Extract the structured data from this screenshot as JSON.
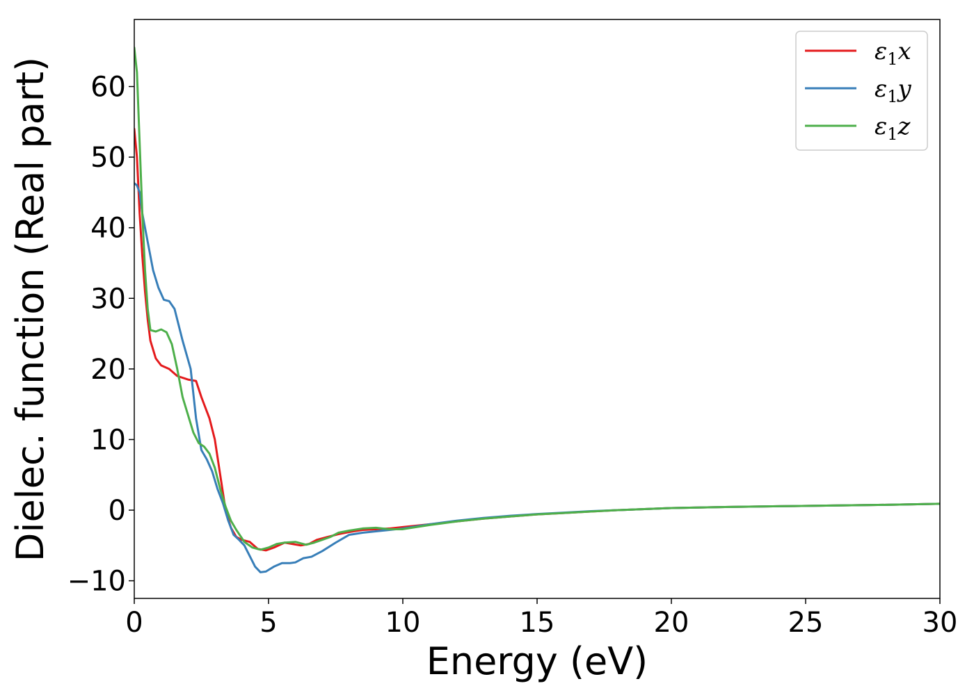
{
  "chart_data": {
    "type": "line",
    "title": "",
    "xlabel": "Energy (eV)",
    "ylabel": "Dielec. function (Real part)",
    "xlim": [
      0,
      30
    ],
    "ylim": [
      -12.5,
      69.5
    ],
    "xticks": [
      0,
      5,
      10,
      15,
      20,
      25,
      30
    ],
    "xtick_labels": [
      "0",
      "5",
      "10",
      "15",
      "20",
      "25",
      "30"
    ],
    "yticks": [
      -10,
      0,
      10,
      20,
      30,
      40,
      50,
      60
    ],
    "ytick_labels": [
      "−10",
      "0",
      "10",
      "20",
      "30",
      "40",
      "50",
      "60"
    ],
    "grid": false,
    "legend_position": "top-right",
    "series": [
      {
        "name": "ε",
        "sub": "1",
        "suffix": "x",
        "color": "#e41a1c",
        "points": [
          [
            0,
            54
          ],
          [
            0.1,
            50
          ],
          [
            0.2,
            42
          ],
          [
            0.3,
            36
          ],
          [
            0.4,
            31
          ],
          [
            0.5,
            27
          ],
          [
            0.6,
            24
          ],
          [
            0.8,
            21.5
          ],
          [
            1.0,
            20.5
          ],
          [
            1.3,
            20
          ],
          [
            1.6,
            19
          ],
          [
            2.0,
            18.5
          ],
          [
            2.3,
            18.3
          ],
          [
            2.5,
            16
          ],
          [
            2.8,
            13
          ],
          [
            3.0,
            10
          ],
          [
            3.2,
            5
          ],
          [
            3.4,
            0
          ],
          [
            3.6,
            -2.5
          ],
          [
            3.8,
            -3.8
          ],
          [
            4.0,
            -4.2
          ],
          [
            4.3,
            -4.5
          ],
          [
            4.6,
            -5.5
          ],
          [
            4.9,
            -5.7
          ],
          [
            5.2,
            -5.3
          ],
          [
            5.6,
            -4.6
          ],
          [
            5.9,
            -4.8
          ],
          [
            6.2,
            -5.0
          ],
          [
            6.5,
            -4.8
          ],
          [
            6.8,
            -4.2
          ],
          [
            7.2,
            -3.8
          ],
          [
            7.6,
            -3.4
          ],
          [
            8.0,
            -3.1
          ],
          [
            8.5,
            -2.8
          ],
          [
            9.0,
            -2.7
          ],
          [
            9.5,
            -2.6
          ],
          [
            10,
            -2.4
          ],
          [
            11,
            -2.0
          ],
          [
            12,
            -1.6
          ],
          [
            13,
            -1.2
          ],
          [
            14,
            -0.9
          ],
          [
            15,
            -0.6
          ],
          [
            16,
            -0.4
          ],
          [
            17,
            -0.2
          ],
          [
            18,
            0
          ],
          [
            19,
            0.15
          ],
          [
            20,
            0.3
          ],
          [
            22,
            0.45
          ],
          [
            24,
            0.55
          ],
          [
            26,
            0.65
          ],
          [
            28,
            0.75
          ],
          [
            30,
            0.9
          ]
        ]
      },
      {
        "name": "ε",
        "sub": "1",
        "suffix": "y",
        "color": "#377eb8",
        "points": [
          [
            0,
            46.3
          ],
          [
            0.1,
            46
          ],
          [
            0.2,
            45
          ],
          [
            0.3,
            42
          ],
          [
            0.5,
            38
          ],
          [
            0.7,
            34
          ],
          [
            0.9,
            31.5
          ],
          [
            1.1,
            29.8
          ],
          [
            1.3,
            29.6
          ],
          [
            1.5,
            28.5
          ],
          [
            1.8,
            24
          ],
          [
            2.1,
            20
          ],
          [
            2.3,
            13
          ],
          [
            2.5,
            8.5
          ],
          [
            2.7,
            7.2
          ],
          [
            2.9,
            5.5
          ],
          [
            3.1,
            3
          ],
          [
            3.3,
            1
          ],
          [
            3.5,
            -1.5
          ],
          [
            3.7,
            -3.5
          ],
          [
            3.9,
            -4.2
          ],
          [
            4.1,
            -5
          ],
          [
            4.3,
            -6.5
          ],
          [
            4.5,
            -8
          ],
          [
            4.7,
            -8.8
          ],
          [
            4.9,
            -8.7
          ],
          [
            5.2,
            -8.0
          ],
          [
            5.5,
            -7.5
          ],
          [
            5.8,
            -7.5
          ],
          [
            6.0,
            -7.4
          ],
          [
            6.3,
            -6.8
          ],
          [
            6.6,
            -6.6
          ],
          [
            7.0,
            -5.8
          ],
          [
            7.5,
            -4.6
          ],
          [
            8.0,
            -3.5
          ],
          [
            8.5,
            -3.2
          ],
          [
            9.0,
            -3.0
          ],
          [
            9.5,
            -2.8
          ],
          [
            10,
            -2.6
          ],
          [
            11,
            -2.0
          ],
          [
            12,
            -1.5
          ],
          [
            13,
            -1.1
          ],
          [
            14,
            -0.8
          ],
          [
            15,
            -0.55
          ],
          [
            16,
            -0.35
          ],
          [
            17,
            -0.15
          ],
          [
            18,
            0
          ],
          [
            19,
            0.15
          ],
          [
            20,
            0.3
          ],
          [
            22,
            0.45
          ],
          [
            24,
            0.55
          ],
          [
            26,
            0.65
          ],
          [
            28,
            0.75
          ],
          [
            30,
            0.9
          ]
        ]
      },
      {
        "name": "ε",
        "sub": "1",
        "suffix": "z",
        "color": "#4daf4a",
        "points": [
          [
            0,
            65.5
          ],
          [
            0.1,
            62
          ],
          [
            0.2,
            52
          ],
          [
            0.3,
            42
          ],
          [
            0.4,
            34
          ],
          [
            0.5,
            28.5
          ],
          [
            0.6,
            25.5
          ],
          [
            0.8,
            25.3
          ],
          [
            1.0,
            25.6
          ],
          [
            1.2,
            25.2
          ],
          [
            1.4,
            23.5
          ],
          [
            1.6,
            20
          ],
          [
            1.8,
            16
          ],
          [
            2.0,
            13.5
          ],
          [
            2.2,
            11
          ],
          [
            2.4,
            9.5
          ],
          [
            2.6,
            9
          ],
          [
            2.8,
            8
          ],
          [
            3.0,
            6
          ],
          [
            3.2,
            3
          ],
          [
            3.4,
            0.5
          ],
          [
            3.6,
            -1.5
          ],
          [
            3.8,
            -2.8
          ],
          [
            4.1,
            -4.5
          ],
          [
            4.4,
            -5.3
          ],
          [
            4.7,
            -5.6
          ],
          [
            5.0,
            -5.3
          ],
          [
            5.3,
            -4.8
          ],
          [
            5.6,
            -4.6
          ],
          [
            6.0,
            -4.5
          ],
          [
            6.4,
            -4.9
          ],
          [
            6.7,
            -4.6
          ],
          [
            7.0,
            -4.2
          ],
          [
            7.3,
            -3.8
          ],
          [
            7.6,
            -3.2
          ],
          [
            8.0,
            -2.9
          ],
          [
            8.5,
            -2.6
          ],
          [
            9.0,
            -2.5
          ],
          [
            9.5,
            -2.7
          ],
          [
            10,
            -2.7
          ],
          [
            11,
            -2.1
          ],
          [
            12,
            -1.6
          ],
          [
            13,
            -1.2
          ],
          [
            14,
            -0.9
          ],
          [
            15,
            -0.6
          ],
          [
            16,
            -0.4
          ],
          [
            17,
            -0.2
          ],
          [
            18,
            0
          ],
          [
            19,
            0.15
          ],
          [
            20,
            0.3
          ],
          [
            22,
            0.45
          ],
          [
            24,
            0.55
          ],
          [
            26,
            0.65
          ],
          [
            28,
            0.75
          ],
          [
            30,
            0.9
          ]
        ]
      }
    ]
  }
}
